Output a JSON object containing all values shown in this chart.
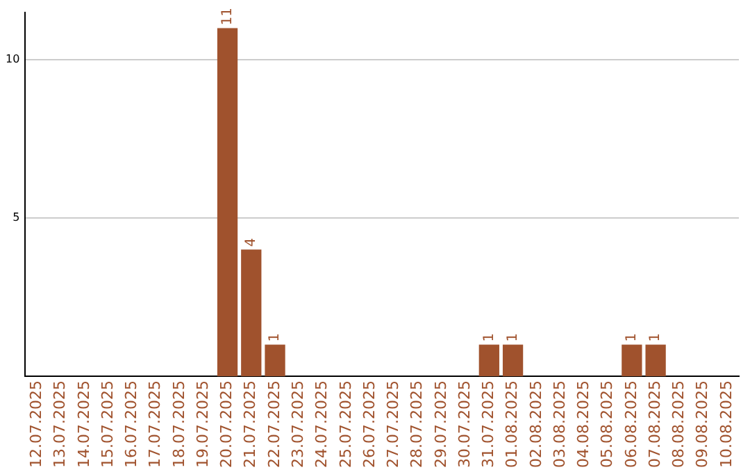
{
  "chart_data": {
    "type": "bar",
    "categories": [
      "12.07.2025",
      "13.07.2025",
      "14.07.2025",
      "15.07.2025",
      "16.07.2025",
      "17.07.2025",
      "18.07.2025",
      "19.07.2025",
      "20.07.2025",
      "21.07.2025",
      "22.07.2025",
      "23.07.2025",
      "24.07.2025",
      "25.07.2025",
      "26.07.2025",
      "27.07.2025",
      "28.07.2025",
      "29.07.2025",
      "30.07.2025",
      "31.07.2025",
      "01.08.2025",
      "02.08.2025",
      "03.08.2025",
      "04.08.2025",
      "05.08.2025",
      "06.08.2025",
      "07.08.2025",
      "08.08.2025",
      "09.08.2025",
      "10.08.2025"
    ],
    "values": [
      0,
      0,
      0,
      0,
      0,
      0,
      0,
      0,
      11,
      4,
      1,
      0,
      0,
      0,
      0,
      0,
      0,
      0,
      0,
      1,
      1,
      0,
      0,
      0,
      0,
      1,
      1,
      0,
      0,
      0
    ],
    "value_labels": [
      null,
      null,
      null,
      null,
      null,
      null,
      null,
      null,
      "11",
      "4",
      "1",
      null,
      null,
      null,
      null,
      null,
      null,
      null,
      null,
      "1",
      "1",
      null,
      null,
      null,
      null,
      "1",
      "1",
      null,
      null,
      null
    ],
    "color": "#a0522d",
    "ylim": [
      0,
      11.5
    ],
    "yticks": [
      5,
      10
    ],
    "grid": "y"
  }
}
